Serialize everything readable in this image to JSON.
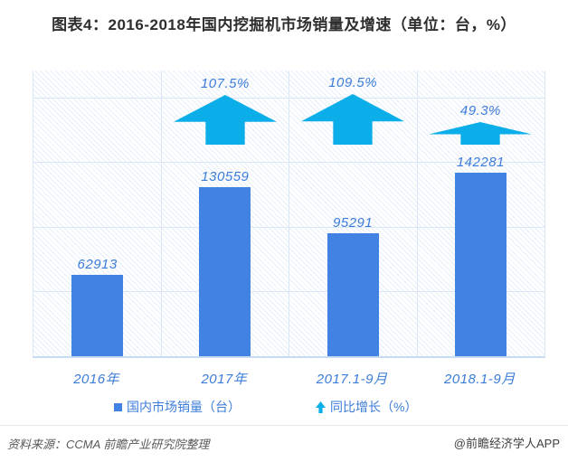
{
  "title": "图表4：2016-2018年国内挖掘机市场销量及增速（单位：台，%）",
  "chart_data": {
    "type": "bar",
    "title": "图表4：2016-2018年国内挖掘机市场销量及增速（单位：台，%）",
    "categories": [
      "2016年",
      "2017年",
      "2017.1-9月",
      "2018.1-9月"
    ],
    "series": [
      {
        "name": "国内市场销量（台）",
        "type": "bar",
        "unit": "台",
        "values": [
          62913,
          130559,
          95291,
          142281
        ]
      },
      {
        "name": "同比增长（%）",
        "type": "arrow",
        "unit": "%",
        "values": [
          null,
          107.5,
          109.5,
          49.3
        ]
      }
    ],
    "data_labels": [
      "62913",
      "130559",
      "95291",
      "142281"
    ],
    "growth_labels": [
      "",
      "107.5%",
      "109.5%",
      "49.3%"
    ],
    "xlabel": "",
    "ylabel": "",
    "ylim": [
      0,
      221000
    ],
    "grid": true,
    "legend_position": "bottom"
  },
  "legend": {
    "sales_label": "国内市场销量（台）",
    "growth_label": "同比增长（%）"
  },
  "footer": {
    "source": "资料来源：CCMA 前瞻产业研究院整理",
    "watermark": "@前瞻经济学人APP"
  },
  "colors": {
    "bar": "#4282E2",
    "arrow": "#0BAEE9",
    "label": "#3C7CD9",
    "grid": "#D9E7F7"
  }
}
